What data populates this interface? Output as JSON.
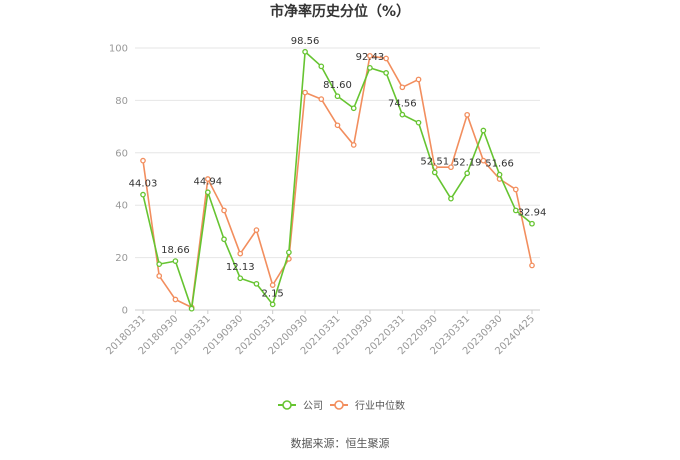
{
  "chart_data": {
    "type": "line",
    "title": "市净率历史分位（%）",
    "source": "数据来源：恒生聚源",
    "ylim": [
      0,
      100
    ],
    "yticks": [
      "0",
      "20",
      "40",
      "60",
      "80",
      "100"
    ],
    "xtick_labels": [
      "20180331",
      "20180930",
      "20190331",
      "20190930",
      "20200331",
      "20200930",
      "20210331",
      "20210930",
      "20220331",
      "20220930",
      "20230331",
      "20230930",
      "20240425"
    ],
    "grid": true,
    "legend_position": "bottom",
    "series": [
      {
        "name": "公司",
        "color": "#66c431",
        "values": [
          44.03,
          17.5,
          18.66,
          0.5,
          44.94,
          27.0,
          12.13,
          10.0,
          2.15,
          22.0,
          98.56,
          93.0,
          81.6,
          77.0,
          92.43,
          90.5,
          74.56,
          71.5,
          52.51,
          42.5,
          52.19,
          68.5,
          51.66,
          38.0,
          32.94
        ]
      },
      {
        "name": "行业中位数",
        "color": "#f28e5e",
        "values": [
          57.0,
          13.0,
          4.0,
          1.0,
          50.0,
          38.0,
          21.5,
          30.5,
          9.5,
          19.5,
          83.0,
          80.5,
          70.5,
          63.0,
          97.0,
          96.0,
          85.0,
          88.0,
          54.5,
          54.5,
          74.5,
          57.0,
          50.0,
          46.0,
          17.0
        ]
      }
    ],
    "data_labels": [
      {
        "index": 0,
        "text": "44.03"
      },
      {
        "index": 2,
        "text": "18.66"
      },
      {
        "index": 4,
        "text": "44.94"
      },
      {
        "index": 6,
        "text": "12.13"
      },
      {
        "index": 8,
        "text": "2.15"
      },
      {
        "index": 10,
        "text": "98.56"
      },
      {
        "index": 12,
        "text": "81.60"
      },
      {
        "index": 14,
        "text": "92.43"
      },
      {
        "index": 16,
        "text": "74.56"
      },
      {
        "index": 18,
        "text": "52.51"
      },
      {
        "index": 20,
        "text": "52.19"
      },
      {
        "index": 22,
        "text": "51.66"
      },
      {
        "index": 24,
        "text": "32.94"
      }
    ]
  }
}
